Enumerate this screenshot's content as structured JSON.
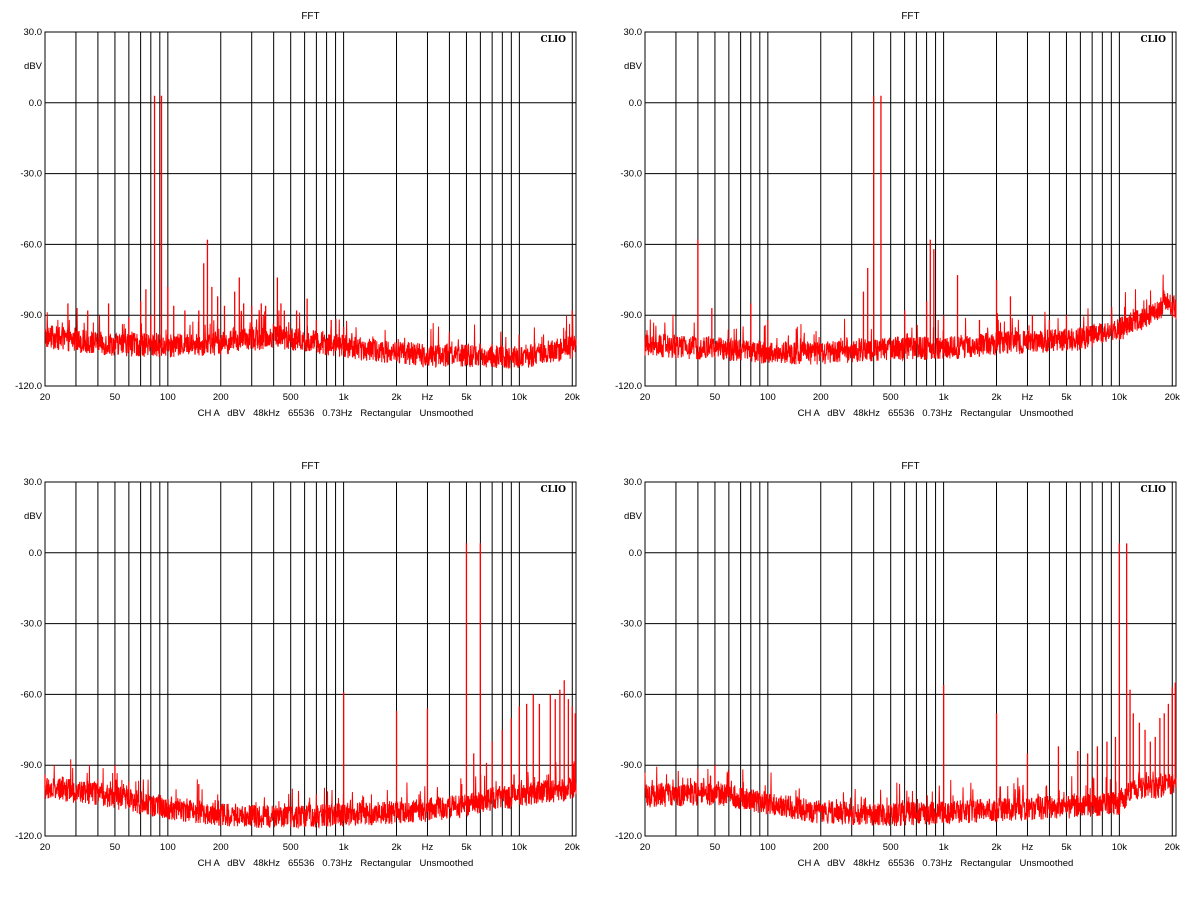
{
  "brand_label": "CLIO",
  "colors": {
    "trace": "#ff0000",
    "grid": "#000000",
    "background": "#ffffff"
  },
  "chart_data": [
    {
      "type": "line",
      "title": "FFT",
      "ylabel": "dBV",
      "xscale": "log",
      "xlim": [
        20,
        21000
      ],
      "ylim": [
        -120,
        30
      ],
      "grid": true,
      "x_tick_labels": [
        "20",
        "50",
        "100",
        "200",
        "500",
        "1k",
        "2k",
        "Hz",
        "5k",
        "10k",
        "20k"
      ],
      "y_tick_labels": [
        "30.0",
        "0.0",
        "-30.0",
        "-60.0",
        "-90.0",
        "-120.0"
      ],
      "footer": "CH A   dBV   48kHz   65536   0.73Hz   Rectangular   Unsmoothed",
      "noise_floor": [
        [
          20,
          -99
        ],
        [
          40,
          -102
        ],
        [
          100,
          -103
        ],
        [
          200,
          -102
        ],
        [
          400,
          -99
        ],
        [
          800,
          -102
        ],
        [
          1500,
          -105
        ],
        [
          3000,
          -107
        ],
        [
          6000,
          -107
        ],
        [
          10000,
          -108
        ],
        [
          14000,
          -106
        ],
        [
          21000,
          -103
        ]
      ],
      "peaks": [
        [
          27,
          -85
        ],
        [
          35,
          -88
        ],
        [
          46,
          -85
        ],
        [
          60,
          -91
        ],
        [
          70,
          -84
        ],
        [
          75,
          -79
        ],
        [
          80,
          -90
        ],
        [
          84,
          3
        ],
        [
          92,
          3
        ],
        [
          100,
          -78
        ],
        [
          108,
          -86
        ],
        [
          125,
          -88
        ],
        [
          150,
          -88
        ],
        [
          160,
          -68
        ],
        [
          168,
          -58
        ],
        [
          178,
          -78
        ],
        [
          192,
          -82
        ],
        [
          210,
          -86
        ],
        [
          240,
          -80
        ],
        [
          255,
          -74
        ],
        [
          270,
          -85
        ],
        [
          300,
          -86
        ],
        [
          340,
          -85
        ],
        [
          360,
          -86
        ],
        [
          420,
          -74
        ],
        [
          440,
          -85
        ],
        [
          460,
          -88
        ],
        [
          540,
          -88
        ],
        [
          620,
          -83
        ],
        [
          700,
          -92
        ],
        [
          850,
          -92
        ],
        [
          1000,
          -95
        ],
        [
          20000,
          -88
        ]
      ]
    },
    {
      "type": "line",
      "title": "FFT",
      "ylabel": "dBV",
      "xscale": "log",
      "xlim": [
        20,
        21000
      ],
      "ylim": [
        -120,
        30
      ],
      "grid": true,
      "x_tick_labels": [
        "20",
        "50",
        "100",
        "200",
        "500",
        "1k",
        "2k",
        "Hz",
        "5k",
        "10k",
        "20k"
      ],
      "y_tick_labels": [
        "30.0",
        "0.0",
        "-30.0",
        "-60.0",
        "-90.0",
        "-120.0"
      ],
      "footer": "CH A   dBV   48kHz   65536   0.73Hz   Rectangular   Unsmoothed",
      "noise_floor": [
        [
          20,
          -103
        ],
        [
          50,
          -104
        ],
        [
          100,
          -106
        ],
        [
          200,
          -106
        ],
        [
          500,
          -104
        ],
        [
          1000,
          -104
        ],
        [
          2000,
          -102
        ],
        [
          4000,
          -101
        ],
        [
          6000,
          -100
        ],
        [
          10000,
          -96
        ],
        [
          15000,
          -90
        ],
        [
          19000,
          -84
        ],
        [
          21000,
          -88
        ]
      ],
      "peaks": [
        [
          40,
          -58
        ],
        [
          48,
          -87
        ],
        [
          80,
          -85
        ],
        [
          100,
          -92
        ],
        [
          350,
          -80
        ],
        [
          370,
          -70
        ],
        [
          400,
          3
        ],
        [
          440,
          3
        ],
        [
          600,
          -88
        ],
        [
          800,
          -84
        ],
        [
          840,
          -58
        ],
        [
          880,
          -62
        ],
        [
          1000,
          -90
        ],
        [
          1200,
          -73
        ],
        [
          1600,
          -92
        ],
        [
          2000,
          -75
        ],
        [
          2400,
          -82
        ],
        [
          3200,
          -90
        ],
        [
          4000,
          -92
        ],
        [
          5000,
          -90
        ]
      ]
    },
    {
      "type": "line",
      "title": "FFT",
      "ylabel": "dBV",
      "xscale": "log",
      "xlim": [
        20,
        21000
      ],
      "ylim": [
        -120,
        30
      ],
      "grid": true,
      "x_tick_labels": [
        "20",
        "50",
        "100",
        "200",
        "500",
        "1k",
        "2k",
        "Hz",
        "5k",
        "10k",
        "20k"
      ],
      "y_tick_labels": [
        "30.0",
        "0.0",
        "-30.0",
        "-60.0",
        "-90.0",
        "-120.0"
      ],
      "footer": "CH A   dBV   48kHz   65536   0.73Hz   Rectangular   Unsmoothed",
      "noise_floor": [
        [
          20,
          -100
        ],
        [
          40,
          -102
        ],
        [
          60,
          -105
        ],
        [
          100,
          -108
        ],
        [
          200,
          -111
        ],
        [
          500,
          -112
        ],
        [
          1000,
          -111
        ],
        [
          2000,
          -110
        ],
        [
          3000,
          -109
        ],
        [
          5000,
          -107
        ],
        [
          7000,
          -104
        ],
        [
          10000,
          -103
        ],
        [
          15000,
          -101
        ],
        [
          21000,
          -100
        ]
      ],
      "peaks": [
        [
          20,
          -94
        ],
        [
          40,
          -96
        ],
        [
          50,
          -90
        ],
        [
          60,
          -97
        ],
        [
          150,
          -98
        ],
        [
          1000,
          -59
        ],
        [
          2000,
          -67
        ],
        [
          3000,
          -66
        ],
        [
          4700,
          -98
        ],
        [
          5000,
          4
        ],
        [
          5500,
          -85
        ],
        [
          6000,
          4
        ],
        [
          6500,
          -89
        ],
        [
          7000,
          -80
        ],
        [
          8000,
          -75
        ],
        [
          9000,
          -70
        ],
        [
          10000,
          -65
        ],
        [
          11000,
          -64
        ],
        [
          12000,
          -60
        ],
        [
          13000,
          -64
        ],
        [
          15000,
          -60
        ],
        [
          16000,
          -62
        ],
        [
          17000,
          -58
        ],
        [
          18000,
          -54
        ],
        [
          19000,
          -62
        ],
        [
          20000,
          -65
        ],
        [
          20800,
          -68
        ]
      ]
    },
    {
      "type": "line",
      "title": "FFT",
      "ylabel": "dBV",
      "xscale": "log",
      "xlim": [
        20,
        21000
      ],
      "ylim": [
        -120,
        30
      ],
      "grid": true,
      "x_tick_labels": [
        "20",
        "50",
        "100",
        "200",
        "500",
        "1k",
        "2k",
        "Hz",
        "5k",
        "10k",
        "20k"
      ],
      "y_tick_labels": [
        "30.0",
        "0.0",
        "-30.0",
        "-60.0",
        "-90.0",
        "-120.0"
      ],
      "footer": "CH A   dBV   48kHz   65536   0.73Hz   Rectangular   Unsmoothed",
      "noise_floor": [
        [
          20,
          -103
        ],
        [
          50,
          -102
        ],
        [
          100,
          -106
        ],
        [
          200,
          -110
        ],
        [
          500,
          -111
        ],
        [
          1000,
          -110
        ],
        [
          2000,
          -109
        ],
        [
          4000,
          -108
        ],
        [
          7000,
          -107
        ],
        [
          10000,
          -106
        ],
        [
          12000,
          -100
        ],
        [
          16000,
          -99
        ],
        [
          21000,
          -98
        ]
      ],
      "peaks": [
        [
          50,
          -90
        ],
        [
          60,
          -93
        ],
        [
          1000,
          -56
        ],
        [
          2000,
          -68
        ],
        [
          3000,
          -85
        ],
        [
          4500,
          -82
        ],
        [
          5800,
          -84
        ],
        [
          6600,
          -85
        ],
        [
          7500,
          -82
        ],
        [
          8500,
          -80
        ],
        [
          9500,
          -78
        ],
        [
          10000,
          4
        ],
        [
          11000,
          4
        ],
        [
          11500,
          -58
        ],
        [
          12000,
          -68
        ],
        [
          13000,
          -72
        ],
        [
          14000,
          -75
        ],
        [
          15000,
          -80
        ],
        [
          16000,
          -78
        ],
        [
          17000,
          -70
        ],
        [
          18000,
          -68
        ],
        [
          19000,
          -64
        ],
        [
          20000,
          -57
        ],
        [
          20800,
          -55
        ]
      ]
    }
  ]
}
